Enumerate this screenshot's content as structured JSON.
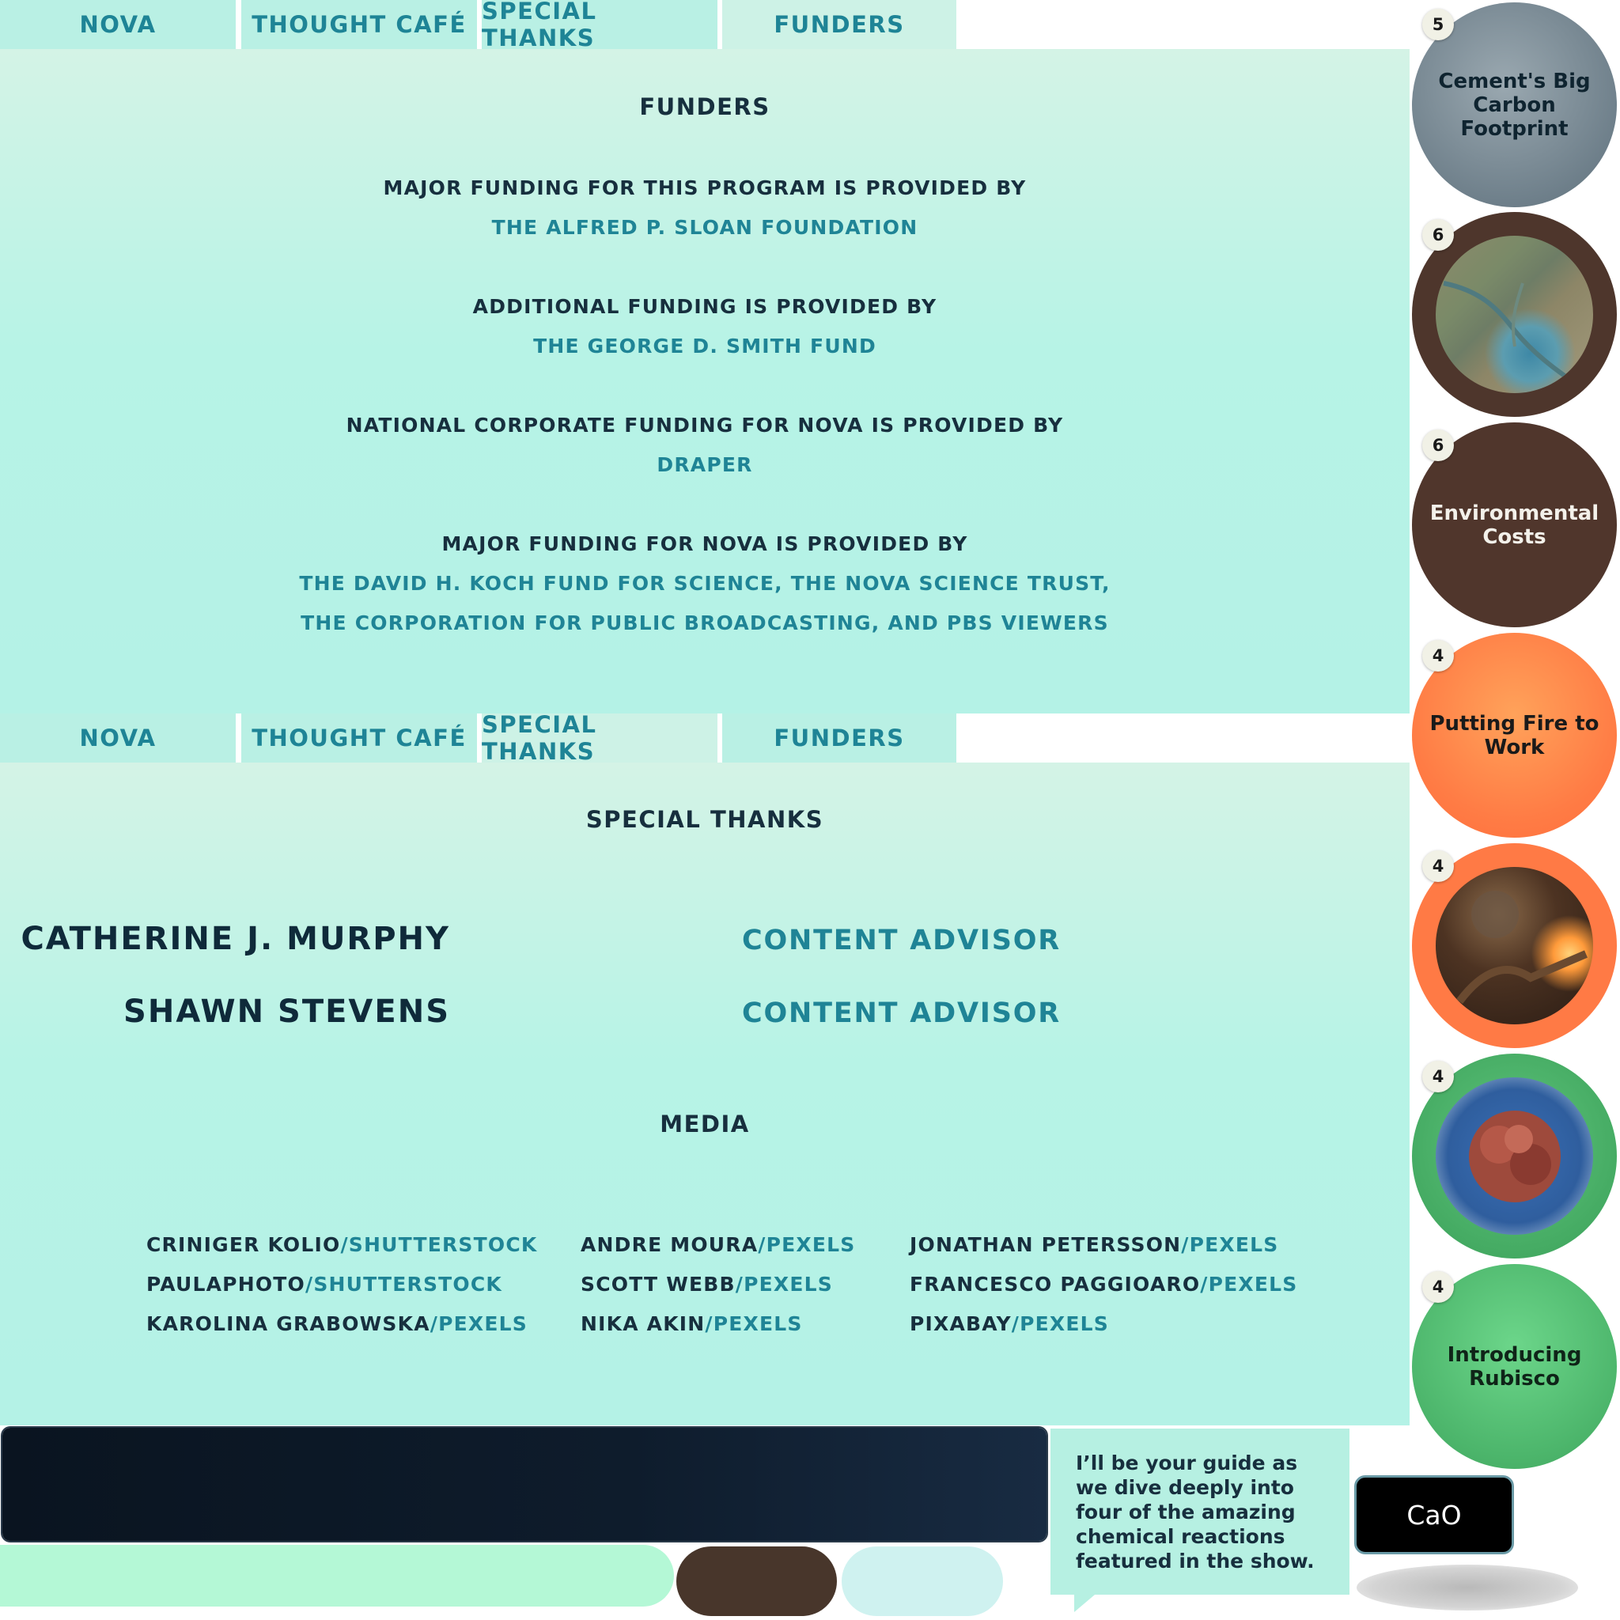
{
  "tabs": [
    "NOVA",
    "THOUGHT CAFÉ",
    "SPECIAL THANKS",
    "FUNDERS"
  ],
  "funders": {
    "title": "FUNDERS",
    "blocks": [
      {
        "head": "MAJOR FUNDING FOR THIS PROGRAM IS PROVIDED BY",
        "values": [
          "THE ALFRED P. SLOAN FOUNDATION"
        ]
      },
      {
        "head": "ADDITIONAL FUNDING IS PROVIDED BY",
        "values": [
          "THE GEORGE D. SMITH FUND"
        ]
      },
      {
        "head": "NATIONAL CORPORATE FUNDING FOR NOVA IS PROVIDED BY",
        "values": [
          "DRAPER"
        ]
      },
      {
        "head": "MAJOR FUNDING FOR NOVA IS PROVIDED BY",
        "values": [
          "THE DAVID H. KOCH FUND FOR SCIENCE, THE NOVA SCIENCE TRUST,",
          "THE CORPORATION FOR PUBLIC BROADCASTING, AND PBS VIEWERS"
        ]
      }
    ]
  },
  "special_thanks": {
    "title": "SPECIAL THANKS",
    "people": [
      {
        "name": "CATHERINE J. MURPHY",
        "role": "CONTENT ADVISOR"
      },
      {
        "name": "SHAWN STEVENS",
        "role": "CONTENT ADVISOR"
      }
    ],
    "media_title": "MEDIA",
    "media": [
      {
        "name": "CRINIGER KOLIO",
        "source": "/SHUTTERSTOCK"
      },
      {
        "name": "PAULAPHOTO",
        "source": "/SHUTTERSTOCK"
      },
      {
        "name": "KAROLINA GRABOWSKA",
        "source": "/PEXELS"
      },
      {
        "name": "ANDRE MOURA",
        "source": "/PEXELS"
      },
      {
        "name": "SCOTT WEBB",
        "source": "/PEXELS"
      },
      {
        "name": "NIKA AKIN",
        "source": "/PEXELS"
      },
      {
        "name": "JONATHAN PETERSSON",
        "source": "/PEXELS"
      },
      {
        "name": "FRANCESCO PAGGIOARO",
        "source": "/PEXELS"
      },
      {
        "name": "PIXABAY",
        "source": "/PEXELS"
      }
    ]
  },
  "chapters": [
    {
      "badge": "5",
      "title": "Cement's Big Carbon Footprint",
      "color": "#7d8d97"
    },
    {
      "badge": "6",
      "title": "",
      "color": "#4e362c"
    },
    {
      "badge": "6",
      "title": "Environmental Costs",
      "color": "#50362c"
    },
    {
      "badge": "4",
      "title": "Putting Fire to Work",
      "color": "#ff7a45"
    },
    {
      "badge": "4",
      "title": "",
      "color": "#ff7a45"
    },
    {
      "badge": "4",
      "title": "",
      "color": "#4cb56b"
    },
    {
      "badge": "4",
      "title": "Introducing Rubisco",
      "color": "#4cb56b"
    }
  ],
  "guide": {
    "bold": "I’ll be your guide",
    "rest": " as we dive deeply into four of the amazing chemical reactions featured in the show."
  },
  "formula": "CaO",
  "icons": [
    "guide-speech-tail-icon"
  ]
}
